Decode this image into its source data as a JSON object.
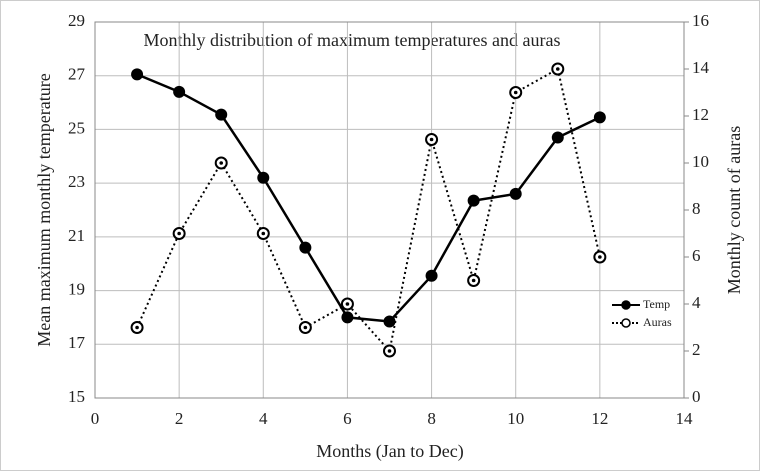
{
  "chart_data": {
    "type": "line",
    "title": "Monthly distribution of maximum temperatures and auras",
    "x_label": "Months (Jan to Dec)",
    "y_label": "Mean maximum monthly temperature",
    "y2_label": "Monthly count of auras",
    "x": [
      1,
      2,
      3,
      4,
      5,
      6,
      7,
      8,
      9,
      10,
      11,
      12
    ],
    "series": [
      {
        "name": "Temp",
        "color": "#000000",
        "style": "solid",
        "marker": "filled",
        "values": [
          27.05,
          26.4,
          25.55,
          23.2,
          20.6,
          18.0,
          17.85,
          19.55,
          22.35,
          22.6,
          24.7,
          25.45
        ]
      },
      {
        "name": "Auras",
        "color": "#000000",
        "style": "dotted",
        "marker": "open",
        "axis": "y2",
        "values": [
          3,
          7,
          10,
          7,
          3,
          4,
          2,
          11,
          5,
          13,
          14,
          6
        ]
      }
    ],
    "xlim": [
      0,
      14
    ],
    "xticks": [
      0,
      2,
      4,
      6,
      8,
      10,
      12,
      14
    ],
    "ylim": [
      15,
      29
    ],
    "yticks": [
      15,
      17,
      19,
      21,
      23,
      25,
      27,
      29
    ],
    "y2lim": [
      0,
      16
    ],
    "y2ticks": [
      0,
      2,
      4,
      6,
      8,
      10,
      12,
      14,
      16
    ],
    "grid": true,
    "legend": "right"
  }
}
